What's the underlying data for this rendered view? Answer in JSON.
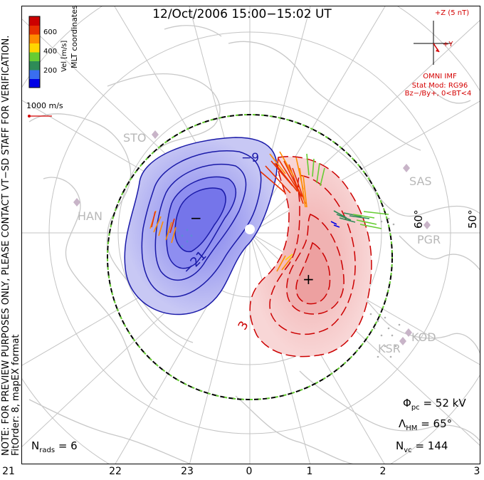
{
  "header": {
    "title": "12/Oct/2006 15:00−15:02 UT"
  },
  "side_note": {
    "line1": "NOTE: FOR PREVIEW PURPOSES ONLY, PLEASE CONTACT VT−SD STAFF FOR VERIFICATION.",
    "line2": "FitOrder: 8, mapEX format",
    "coords": "MLT coordinates"
  },
  "colorbar": {
    "label": "Vel [m/s]",
    "ticks": [
      "600",
      "400",
      "200"
    ],
    "colors": [
      "#0000e6",
      "#3a6ef0",
      "#2e8b57",
      "#66cc33",
      "#ffd700",
      "#ff8c00",
      "#e83000",
      "#cc0000"
    ]
  },
  "scale_vector": {
    "label": "1000 m/s",
    "color": "#d40000"
  },
  "imf": {
    "top": "+Z (5 nT)",
    "right": "+Y",
    "source": "OMNI IMF",
    "model": "Stat Mod: RG96",
    "condition": "Bz−/By+, 0<BT<4",
    "color": "#d40000"
  },
  "latitude_labels": {
    "lat60": "60°",
    "lat50": "50°"
  },
  "stations": [
    {
      "name": "STO",
      "icon": "radar-site-icon"
    },
    {
      "name": "HAN",
      "icon": "radar-site-icon"
    },
    {
      "name": "SAS",
      "icon": "radar-site-icon"
    },
    {
      "name": "PGR",
      "icon": "radar-site-icon"
    },
    {
      "name": "KOD",
      "icon": "radar-site-icon"
    },
    {
      "name": "KSR",
      "icon": "radar-site-icon"
    }
  ],
  "contours": {
    "negative_label": "−9",
    "negative_label2": "−21",
    "positive_label": "3",
    "min_marker": "−",
    "max_marker": "+",
    "negative_color": "#1a1aa8",
    "positive_color": "#cc0000"
  },
  "stats": {
    "phi_pc": "Φ",
    "phi_sub": "pc",
    "phi_val": "= 52 kV",
    "lambda": "Λ",
    "lambda_sub": "HM",
    "lambda_val": "= 65°",
    "nvc": "N",
    "nvc_sub": "vc",
    "nvc_val": "= 144"
  },
  "nrads": {
    "label": "N",
    "sub": "rads",
    "value": "= 6"
  },
  "mlt_axis": [
    "21",
    "22",
    "23",
    "0",
    "1",
    "2",
    "3"
  ]
}
